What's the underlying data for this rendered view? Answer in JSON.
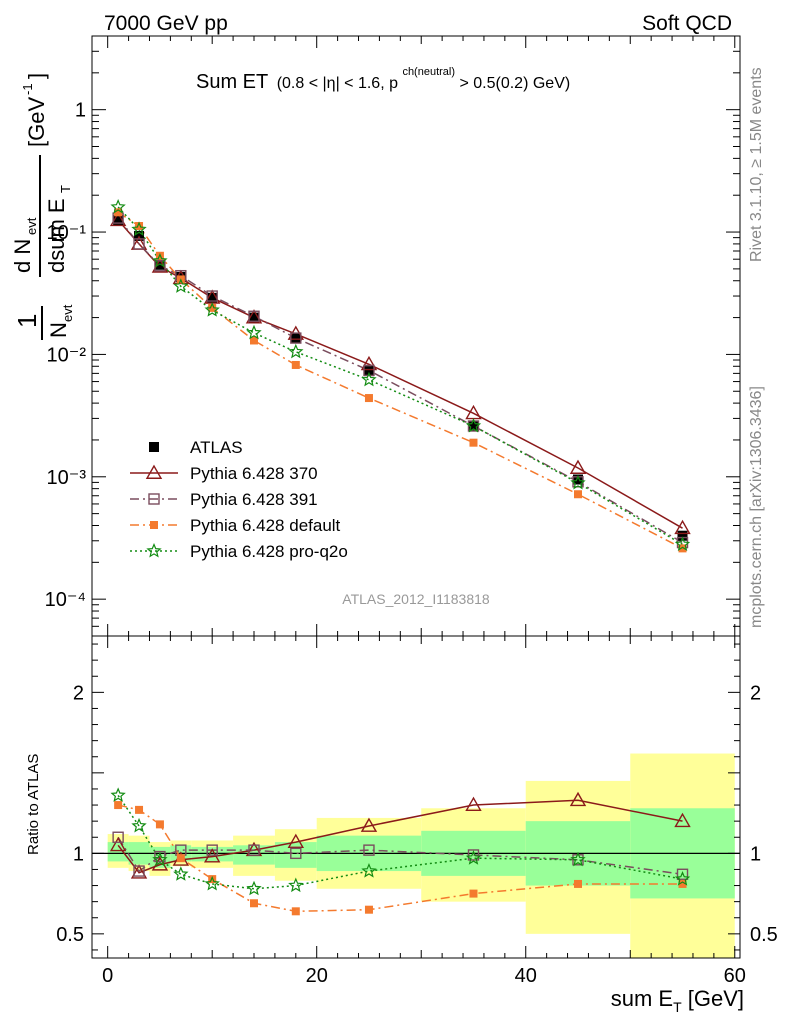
{
  "header": {
    "energy_label": "7000 GeV pp",
    "process_label": "Soft QCD"
  },
  "side_labels": {
    "rivet": "Rivet 3.1.10, ≥ 1.5M events",
    "mcplots": "mcplots.cern.ch [arXiv:1306.3436]"
  },
  "chart_data": [
    {
      "type": "line",
      "panel": "main",
      "title": "Sum ET",
      "title_suffix": "(0.8 < |η| < 1.6, p",
      "title_sup": "ch(neutral)",
      "title_end": " > 0.5(0.2) GeV)",
      "ylabel": "1/N_evt dN_evt/dsum E_T [GeV^-1]",
      "yscale": "log",
      "ylim": [
        5e-05,
        4
      ],
      "xlim": [
        -1.5,
        60.5
      ],
      "yticks": [
        {
          "value": 1,
          "label": "1"
        },
        {
          "value": 0.1,
          "label": "10⁻¹"
        },
        {
          "value": 0.01,
          "label": "10⁻²"
        },
        {
          "value": 0.001,
          "label": "10⁻³"
        },
        {
          "value": 0.0001,
          "label": "10⁻⁴"
        }
      ],
      "analysis_label": "ATLAS_2012_I1183818",
      "legend_position": "lower-left",
      "x": [
        1,
        3,
        5,
        7,
        10,
        14,
        18,
        25,
        35,
        45,
        55
      ],
      "series": [
        {
          "name": "ATLAS",
          "color": "#000000",
          "marker": "filled-square",
          "line": "none",
          "values": [
            0.125,
            0.093,
            0.054,
            0.043,
            0.029,
            0.02,
            0.0135,
            0.0073,
            0.0026,
            0.00095,
            0.00033
          ]
        },
        {
          "name": "Pythia 6.428 370",
          "color": "#8b1a1a",
          "marker": "open-triangle",
          "line": "solid",
          "values": [
            0.125,
            0.08,
            0.052,
            0.042,
            0.029,
            0.02,
            0.0147,
            0.0083,
            0.0033,
            0.00118,
            0.00038
          ]
        },
        {
          "name": "Pythia 6.428 391",
          "color": "#7a4d5e",
          "marker": "open-square",
          "line": "dashdot",
          "values": [
            0.13,
            0.08,
            0.053,
            0.044,
            0.03,
            0.0205,
            0.0136,
            0.0074,
            0.0026,
            0.00091,
            0.00029
          ]
        },
        {
          "name": "Pythia 6.428 default",
          "color": "#f47a2e",
          "marker": "filled-small-square",
          "line": "dashdot",
          "values": [
            0.145,
            0.112,
            0.064,
            0.041,
            0.024,
            0.013,
            0.0082,
            0.0044,
            0.0019,
            0.00072,
            0.00026
          ]
        },
        {
          "name": "Pythia 6.428 pro-q2o",
          "color": "#138c13",
          "marker": "star",
          "line": "dotted",
          "values": [
            0.16,
            0.105,
            0.058,
            0.036,
            0.023,
            0.015,
            0.0105,
            0.0062,
            0.0026,
            0.00089,
            0.00028
          ]
        }
      ]
    },
    {
      "type": "line",
      "panel": "ratio",
      "ylabel": "Ratio to ATLAS",
      "xlabel": "sum E_T [GeV]",
      "ylim": [
        0.35,
        2.35
      ],
      "xlim": [
        -1.5,
        60.5
      ],
      "xticks": [
        0,
        20,
        40,
        60
      ],
      "yticks": [
        0.5,
        1,
        2
      ],
      "reference": 1,
      "bins": [
        {
          "lo": 0,
          "hi": 2,
          "stat": [
            0.95,
            1.07
          ],
          "total": [
            0.91,
            1.12
          ]
        },
        {
          "lo": 2,
          "hi": 4,
          "stat": [
            0.93,
            1.07
          ],
          "total": [
            0.89,
            1.11
          ]
        },
        {
          "lo": 4,
          "hi": 6,
          "stat": [
            0.91,
            1.04
          ],
          "total": [
            0.86,
            1.07
          ]
        },
        {
          "lo": 6,
          "hi": 8,
          "stat": [
            0.95,
            1.05
          ],
          "total": [
            0.92,
            1.08
          ]
        },
        {
          "lo": 8,
          "hi": 12,
          "stat": [
            0.95,
            1.04
          ],
          "total": [
            0.91,
            1.08
          ]
        },
        {
          "lo": 12,
          "hi": 16,
          "stat": [
            0.93,
            1.05
          ],
          "total": [
            0.86,
            1.11
          ]
        },
        {
          "lo": 16,
          "hi": 20,
          "stat": [
            0.91,
            1.07
          ],
          "total": [
            0.83,
            1.15
          ]
        },
        {
          "lo": 20,
          "hi": 30,
          "stat": [
            0.89,
            1.11
          ],
          "total": [
            0.78,
            1.22
          ]
        },
        {
          "lo": 30,
          "hi": 40,
          "stat": [
            0.86,
            1.14
          ],
          "total": [
            0.7,
            1.28
          ]
        },
        {
          "lo": 40,
          "hi": 50,
          "stat": [
            0.8,
            1.2
          ],
          "total": [
            0.5,
            1.45
          ]
        },
        {
          "lo": 50,
          "hi": 60,
          "stat": [
            0.72,
            1.28
          ],
          "total": [
            0.33,
            1.62
          ]
        }
      ],
      "band_colors": {
        "stat": "#99ff99",
        "total": "#ffff99"
      },
      "x": [
        1,
        3,
        5,
        7,
        10,
        14,
        18,
        25,
        35,
        45,
        55
      ],
      "series": [
        {
          "name": "Pythia 6.428 370",
          "color": "#8b1a1a",
          "marker": "open-triangle",
          "line": "solid",
          "values": [
            1.05,
            0.88,
            0.93,
            0.96,
            0.98,
            1.02,
            1.07,
            1.17,
            1.3,
            1.33,
            1.2
          ]
        },
        {
          "name": "Pythia 6.428 391",
          "color": "#7a4d5e",
          "marker": "open-square",
          "line": "dashdot",
          "values": [
            1.1,
            0.89,
            0.98,
            1.02,
            1.02,
            1.02,
            1.0,
            1.02,
            0.99,
            0.96,
            0.87
          ]
        },
        {
          "name": "Pythia 6.428 default",
          "color": "#f47a2e",
          "marker": "filled-small-square",
          "line": "dashdot",
          "values": [
            1.3,
            1.27,
            1.18,
            0.97,
            0.84,
            0.69,
            0.64,
            0.65,
            0.75,
            0.81,
            0.81
          ]
        },
        {
          "name": "Pythia 6.428 pro-q2o",
          "color": "#138c13",
          "marker": "star",
          "line": "dotted",
          "values": [
            1.36,
            1.17,
            0.96,
            0.87,
            0.81,
            0.78,
            0.8,
            0.89,
            0.97,
            0.96,
            0.84
          ]
        }
      ]
    }
  ]
}
